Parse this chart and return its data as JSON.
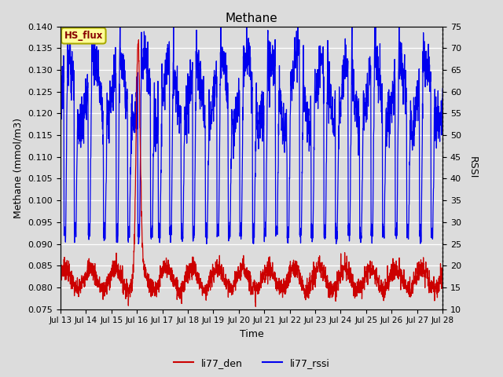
{
  "title": "Methane",
  "xlabel": "Time",
  "ylabel_left": "Methane (mmol/m3)",
  "ylabel_right": "RSSI",
  "ylim_left": [
    0.075,
    0.14
  ],
  "ylim_right": [
    10,
    75
  ],
  "yticks_left": [
    0.075,
    0.08,
    0.085,
    0.09,
    0.095,
    0.1,
    0.105,
    0.11,
    0.115,
    0.12,
    0.125,
    0.13,
    0.135,
    0.14
  ],
  "yticks_right": [
    10,
    15,
    20,
    25,
    30,
    35,
    40,
    45,
    50,
    55,
    60,
    65,
    70,
    75
  ],
  "x_day_labels": [
    "Jul 13",
    "Jul 14",
    "Jul 15",
    "Jul 16",
    "Jul 17",
    "Jul 18",
    "Jul 19",
    "Jul 20",
    "Jul 21",
    "Jul 22",
    "Jul 23",
    "Jul 24",
    "Jul 25",
    "Jul 26",
    "Jul 27",
    "Jul 28"
  ],
  "background_color": "#dcdcdc",
  "plot_bg_color": "#dcdcdc",
  "grid_color": "#ffffff",
  "line_color_red": "#cc0000",
  "line_color_blue": "#0000ee",
  "legend_label_red": "li77_den",
  "legend_label_blue": "li77_rssi",
  "annotation_text": "HS_flux",
  "annotation_bg": "#ffff99",
  "annotation_border": "#aaaa00",
  "annotation_text_color": "#880000",
  "figsize": [
    6.4,
    4.8
  ],
  "dpi": 100
}
